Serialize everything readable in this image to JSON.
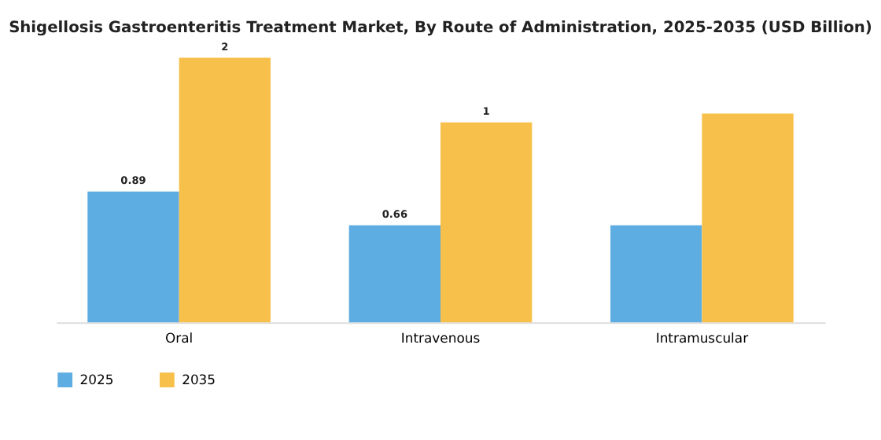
{
  "chart_data": {
    "type": "bar",
    "title": "Shigellosis Gastroenteritis Treatment Market, By Route of Administration, 2025-2035 (USD Billion)",
    "categories": [
      "Oral",
      "Intravenous",
      "Intramuscular"
    ],
    "series": [
      {
        "name": "2025",
        "color": "#5dade2",
        "values": [
          0.89,
          0.66,
          0.66
        ],
        "value_labels": [
          "0.89",
          "0.66",
          null
        ]
      },
      {
        "name": "2035",
        "color": "#f7c04a",
        "values": [
          1.8,
          1.36,
          1.42
        ],
        "value_labels": [
          "2",
          "1",
          null
        ]
      }
    ],
    "grid": false,
    "legend": "bottom"
  }
}
